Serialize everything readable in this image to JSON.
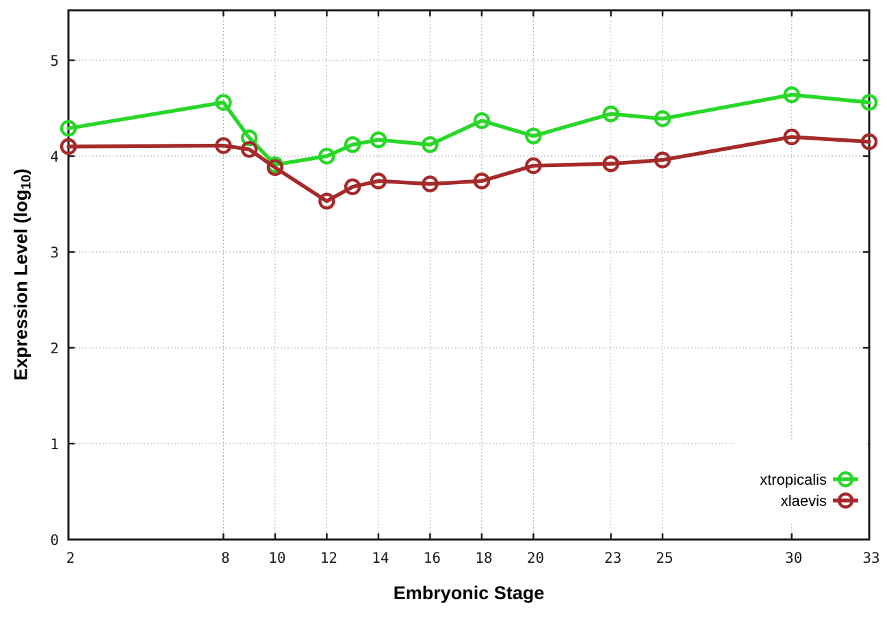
{
  "figure": {
    "background": "#ffffff",
    "border_color": "#1a1a1a",
    "grid_color": "#a8a8a8",
    "tick_label_color": "#1c1c1c"
  },
  "chart_data": {
    "type": "line",
    "title": "",
    "xlabel": "Embryonic Stage",
    "ylabel": "Expression Level (log10)",
    "ylabel_parts": {
      "main": "Expression Level (log",
      "sub": "10",
      "end": ")"
    },
    "x": [
      2,
      8,
      9,
      10,
      12,
      13,
      14,
      16,
      18,
      20,
      23,
      25,
      30,
      33
    ],
    "series": [
      {
        "name": "xtropicalis",
        "color": "#28d728",
        "values": [
          4.29,
          4.56,
          4.19,
          3.91,
          4.0,
          4.12,
          4.17,
          4.12,
          4.37,
          4.21,
          4.44,
          4.39,
          4.64,
          4.56
        ]
      },
      {
        "name": "xlaevis",
        "color": "#a52a2a",
        "values": [
          4.1,
          4.11,
          4.07,
          3.88,
          3.53,
          3.68,
          3.74,
          3.71,
          3.74,
          3.9,
          3.92,
          3.96,
          4.2,
          4.15
        ]
      }
    ],
    "xticks": [
      2,
      8,
      10,
      12,
      14,
      16,
      18,
      20,
      23,
      25,
      30,
      33
    ],
    "yticks": [
      0,
      1,
      2,
      3,
      4,
      5
    ],
    "xlim": [
      2,
      33
    ],
    "ylim": [
      0,
      5.52
    ],
    "grid": true,
    "marker": "open-circle",
    "legend_position": "bottom-right-inside",
    "legend": [
      "xtropicalis",
      "xlaevis"
    ]
  }
}
